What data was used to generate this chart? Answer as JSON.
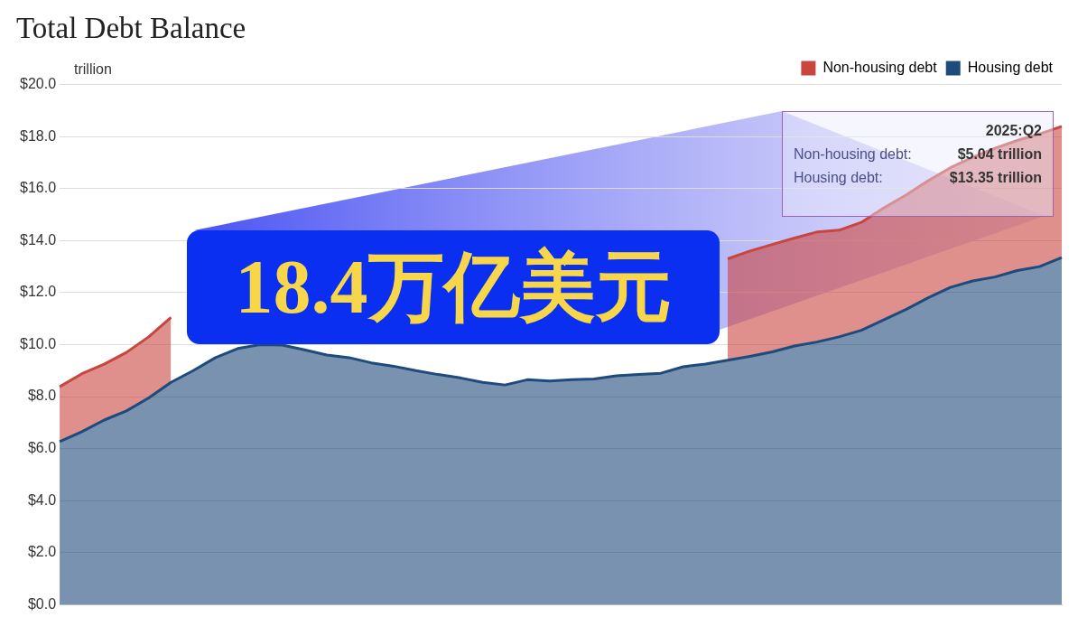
{
  "chart_data": {
    "type": "area",
    "title": "Total Debt Balance",
    "ylabel": "trillion",
    "categories": [
      null,
      null,
      null,
      null,
      null,
      null,
      null,
      null,
      null,
      null,
      null,
      null,
      null,
      null,
      null,
      null,
      null,
      null,
      null,
      null,
      null,
      null,
      null,
      null,
      null,
      null,
      null,
      null,
      null,
      null,
      null,
      null,
      null,
      null,
      null,
      null,
      null,
      null,
      null,
      null,
      null,
      null,
      null,
      null,
      null,
      null
    ],
    "series": [
      {
        "name": "Housing debt",
        "color": "#1e4a7c",
        "values": [
          6.27,
          6.65,
          7.1,
          7.45,
          7.95,
          8.55,
          9.0,
          9.5,
          9.85,
          10.0,
          9.98,
          9.8,
          9.6,
          9.5,
          9.3,
          9.17,
          9.0,
          8.85,
          8.72,
          8.55,
          8.45,
          8.65,
          8.6,
          8.65,
          8.68,
          8.8,
          8.85,
          8.9,
          9.15,
          9.25,
          9.4,
          9.55,
          9.72,
          9.95,
          10.1,
          10.3,
          10.55,
          10.95,
          11.35,
          11.8,
          12.2,
          12.45,
          12.6,
          12.85,
          13.0,
          13.35
        ]
      },
      {
        "name": "Non-housing debt",
        "color": "#c9453f",
        "values": [
          2.11,
          2.23,
          2.15,
          2.25,
          2.35,
          2.5,
          null,
          null,
          null,
          null,
          null,
          null,
          null,
          null,
          null,
          null,
          null,
          null,
          null,
          null,
          null,
          null,
          null,
          null,
          null,
          null,
          null,
          null,
          null,
          null,
          3.9,
          4.05,
          4.13,
          4.15,
          4.23,
          4.1,
          4.15,
          4.3,
          4.4,
          4.5,
          4.6,
          4.75,
          4.95,
          5.0,
          5.1,
          5.04
        ]
      }
    ],
    "stacked": true,
    "ylim": [
      0,
      20
    ],
    "yticks": [
      {
        "value": 0,
        "label": "$0.0"
      },
      {
        "value": 2,
        "label": "$2.0"
      },
      {
        "value": 4,
        "label": "$4.0"
      },
      {
        "value": 6,
        "label": "$6.0"
      },
      {
        "value": 8,
        "label": "$8.0"
      },
      {
        "value": 10,
        "label": "$10.0"
      },
      {
        "value": 12,
        "label": "$12.0"
      },
      {
        "value": 14,
        "label": "$14.0"
      },
      {
        "value": 16,
        "label": "$16.0"
      },
      {
        "value": 18,
        "label": "$18.0"
      },
      {
        "value": 20,
        "label": "$20.0"
      }
    ],
    "grid": "y",
    "legend": "top right",
    "tick_labels": "y",
    "annotations": [
      "18.4万亿美元",
      "2025:Q2",
      "Non-housing debt:",
      "$5.04 trillion",
      "Housing debt:",
      "$13.35 trillion"
    ]
  }
}
